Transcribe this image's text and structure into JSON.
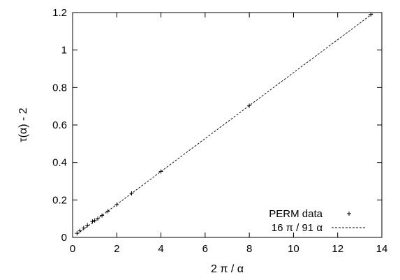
{
  "chart_data": {
    "type": "scatter",
    "xlabel": "2 π / α",
    "ylabel": "τ(α)  - 2",
    "xlim": [
      0,
      14
    ],
    "ylim": [
      0,
      1.2
    ],
    "x_ticks": [
      "0",
      "2",
      "4",
      "6",
      "8",
      "10",
      "12",
      "14"
    ],
    "y_ticks": [
      "0",
      "0.2",
      "0.4",
      "0.6",
      "0.8",
      "1",
      "1.2"
    ],
    "grid": false,
    "legend_position": "bottom-right",
    "series": [
      {
        "name": "PERM data",
        "kind": "points",
        "marker": "plus",
        "x": [
          0.2,
          0.33,
          0.5,
          0.67,
          0.9,
          1.0,
          1.14,
          1.33,
          1.6,
          2.0,
          2.67,
          4.0,
          8.0,
          13.5
        ],
        "y": [
          0.022,
          0.035,
          0.05,
          0.065,
          0.085,
          0.09,
          0.1,
          0.117,
          0.14,
          0.175,
          0.235,
          0.352,
          0.703,
          1.19
        ]
      },
      {
        "name": "16 π / 91 α",
        "kind": "line",
        "style": "dashed",
        "x": [
          0.2,
          13.6
        ],
        "y": [
          0.0176,
          1.196
        ]
      }
    ]
  }
}
